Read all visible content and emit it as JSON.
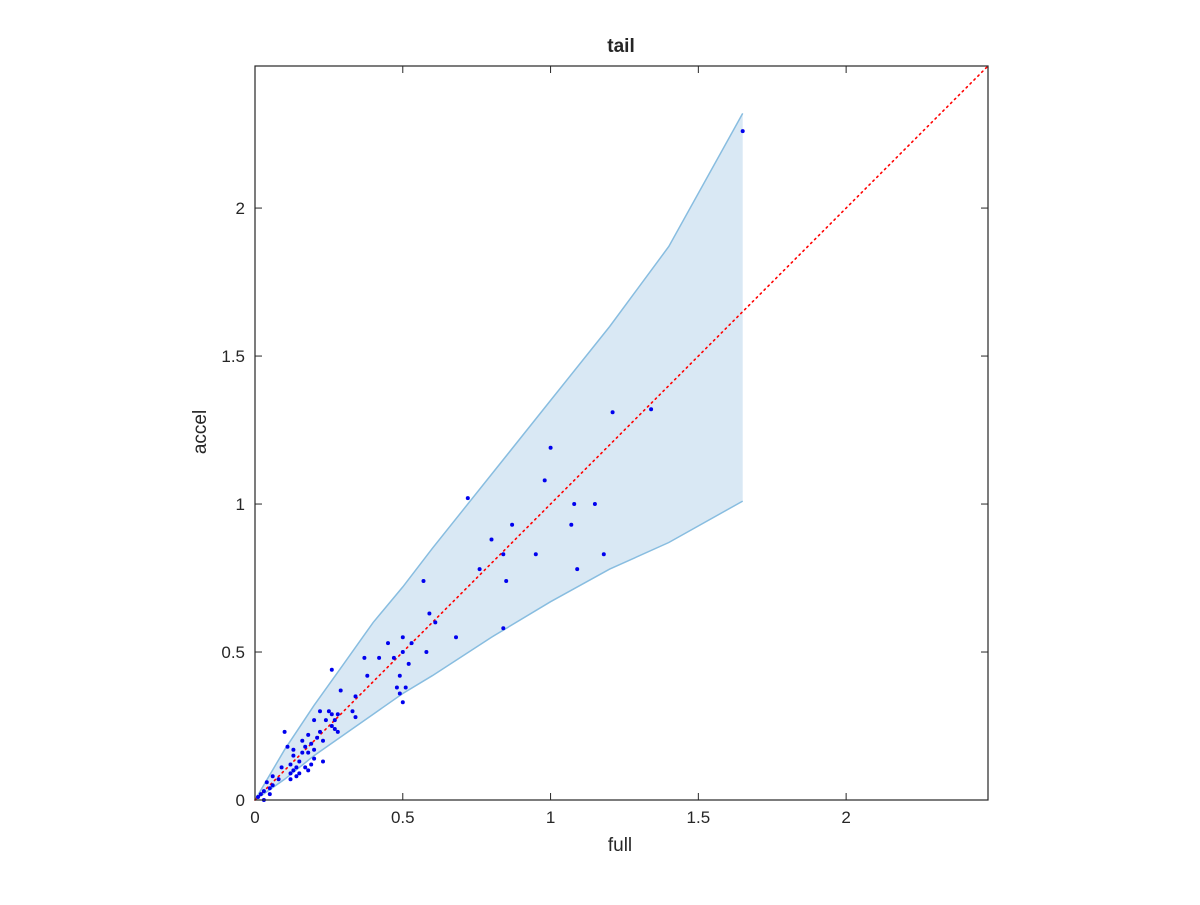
{
  "chart_data": {
    "type": "scatter",
    "title": "tail",
    "xlabel": "full",
    "ylabel": "accel",
    "xlim": [
      0,
      2.48
    ],
    "ylim": [
      0,
      2.48
    ],
    "xticks": [
      0,
      0.5,
      1,
      1.5,
      2
    ],
    "xtick_labels": [
      "0",
      "0.5",
      "1",
      "1.5",
      "2"
    ],
    "yticks": [
      0,
      0.5,
      1,
      1.5,
      2
    ],
    "ytick_labels": [
      "0",
      "0.5",
      "1",
      "1.5",
      "2"
    ],
    "grid": false,
    "legend": "none",
    "reference_line": {
      "style": "dotted",
      "color": "#ff0000",
      "from": [
        0,
        0
      ],
      "to": [
        2.48,
        2.48
      ]
    },
    "band": {
      "fill_color": "#d9e8f4",
      "edge_color": "#88bde0",
      "x": [
        0,
        0.1,
        0.2,
        0.3,
        0.4,
        0.5,
        0.6,
        0.8,
        1.0,
        1.2,
        1.4,
        1.65
      ],
      "upper": [
        0,
        0.17,
        0.32,
        0.46,
        0.6,
        0.72,
        0.85,
        1.1,
        1.35,
        1.6,
        1.87,
        2.32
      ],
      "lower": [
        0,
        0.07,
        0.15,
        0.22,
        0.29,
        0.36,
        0.42,
        0.55,
        0.67,
        0.78,
        0.87,
        1.01
      ]
    },
    "series": [
      {
        "color": "#0000ee",
        "points": [
          [
            1.65,
            2.26
          ],
          [
            1.34,
            1.32
          ],
          [
            1.21,
            1.31
          ],
          [
            1.0,
            1.19
          ],
          [
            0.98,
            1.08
          ],
          [
            0.72,
            1.02
          ],
          [
            1.08,
            1.0
          ],
          [
            1.15,
            1.0
          ],
          [
            0.87,
            0.93
          ],
          [
            1.07,
            0.93
          ],
          [
            0.8,
            0.88
          ],
          [
            0.84,
            0.83
          ],
          [
            0.95,
            0.83
          ],
          [
            1.18,
            0.83
          ],
          [
            0.76,
            0.78
          ],
          [
            1.09,
            0.78
          ],
          [
            0.57,
            0.74
          ],
          [
            0.85,
            0.74
          ],
          [
            0.59,
            0.63
          ],
          [
            0.61,
            0.6
          ],
          [
            0.84,
            0.58
          ],
          [
            0.68,
            0.55
          ],
          [
            0.5,
            0.55
          ],
          [
            0.45,
            0.53
          ],
          [
            0.53,
            0.53
          ],
          [
            0.58,
            0.5
          ],
          [
            0.5,
            0.5
          ],
          [
            0.37,
            0.48
          ],
          [
            0.42,
            0.48
          ],
          [
            0.47,
            0.48
          ],
          [
            0.52,
            0.46
          ],
          [
            0.26,
            0.44
          ],
          [
            0.38,
            0.42
          ],
          [
            0.49,
            0.42
          ],
          [
            0.48,
            0.38
          ],
          [
            0.51,
            0.38
          ],
          [
            0.29,
            0.37
          ],
          [
            0.49,
            0.36
          ],
          [
            0.34,
            0.35
          ],
          [
            0.5,
            0.33
          ],
          [
            0.22,
            0.3
          ],
          [
            0.25,
            0.3
          ],
          [
            0.33,
            0.3
          ],
          [
            0.26,
            0.29
          ],
          [
            0.28,
            0.29
          ],
          [
            0.34,
            0.28
          ],
          [
            0.2,
            0.27
          ],
          [
            0.24,
            0.27
          ],
          [
            0.27,
            0.27
          ],
          [
            0.26,
            0.25
          ],
          [
            0.27,
            0.24
          ],
          [
            0.22,
            0.23
          ],
          [
            0.28,
            0.23
          ],
          [
            0.1,
            0.23
          ],
          [
            0.18,
            0.22
          ],
          [
            0.21,
            0.21
          ],
          [
            0.23,
            0.2
          ],
          [
            0.16,
            0.2
          ],
          [
            0.19,
            0.19
          ],
          [
            0.17,
            0.18
          ],
          [
            0.11,
            0.18
          ],
          [
            0.2,
            0.17
          ],
          [
            0.13,
            0.17
          ],
          [
            0.16,
            0.16
          ],
          [
            0.18,
            0.16
          ],
          [
            0.13,
            0.15
          ],
          [
            0.2,
            0.14
          ],
          [
            0.23,
            0.13
          ],
          [
            0.15,
            0.13
          ],
          [
            0.12,
            0.12
          ],
          [
            0.19,
            0.12
          ],
          [
            0.09,
            0.11
          ],
          [
            0.14,
            0.11
          ],
          [
            0.17,
            0.11
          ],
          [
            0.18,
            0.1
          ],
          [
            0.13,
            0.1
          ],
          [
            0.15,
            0.09
          ],
          [
            0.12,
            0.09
          ],
          [
            0.14,
            0.08
          ],
          [
            0.06,
            0.08
          ],
          [
            0.12,
            0.07
          ],
          [
            0.08,
            0.07
          ],
          [
            0.04,
            0.06
          ],
          [
            0.06,
            0.05
          ],
          [
            0.05,
            0.04
          ],
          [
            0.03,
            0.03
          ],
          [
            0.05,
            0.02
          ],
          [
            0.02,
            0.02
          ],
          [
            0.01,
            0.01
          ],
          [
            0.03,
            0.0
          ]
        ]
      }
    ]
  }
}
